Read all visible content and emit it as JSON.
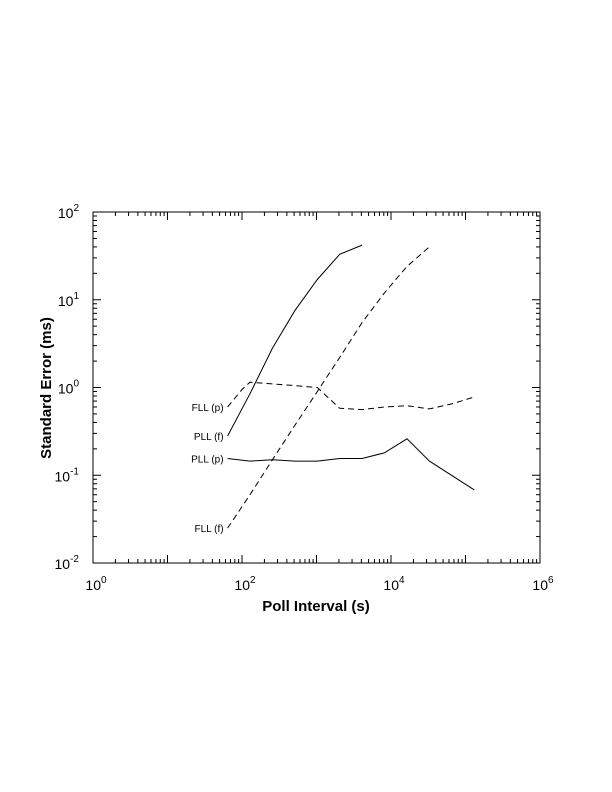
{
  "chart_data": {
    "type": "line",
    "title": "",
    "xlabel": "Poll Interval (s)",
    "ylabel": "Standard Error (ms)",
    "x_scale": "log",
    "y_scale": "log",
    "xlim": [
      1,
      1000000
    ],
    "ylim": [
      0.01,
      100
    ],
    "grid": false,
    "legend": "none",
    "x_ticks": [
      {
        "value": 1,
        "base": "10",
        "exp": "0"
      },
      {
        "value": 100,
        "base": "10",
        "exp": "2"
      },
      {
        "value": 10000,
        "base": "10",
        "exp": "4"
      },
      {
        "value": 1000000,
        "base": "10",
        "exp": "6"
      }
    ],
    "y_ticks": [
      {
        "value": 0.01,
        "base": "10",
        "exp": "-2"
      },
      {
        "value": 0.1,
        "base": "10",
        "exp": "-1"
      },
      {
        "value": 1,
        "base": "10",
        "exp": "0"
      },
      {
        "value": 10,
        "base": "10",
        "exp": "1"
      },
      {
        "value": 100,
        "base": "10",
        "exp": "2"
      }
    ],
    "series": [
      {
        "name": "FLL (p)",
        "style": "dashed",
        "x": [
          64,
          100,
          128,
          256,
          512,
          1024,
          2048,
          4096,
          8192,
          16384,
          32768,
          65536,
          131072
        ],
        "y": [
          0.6,
          0.95,
          1.15,
          1.1,
          1.05,
          1.0,
          0.58,
          0.56,
          0.6,
          0.62,
          0.57,
          0.65,
          0.78
        ]
      },
      {
        "name": "PLL (f)",
        "style": "solid",
        "x": [
          64,
          128,
          256,
          512,
          1024,
          2048,
          4096
        ],
        "y": [
          0.28,
          0.85,
          2.8,
          7.5,
          17,
          33,
          42
        ]
      },
      {
        "name": "PLL (p)",
        "style": "solid",
        "x": [
          64,
          128,
          256,
          512,
          1024,
          2048,
          4096,
          8192,
          16384,
          32768,
          131072
        ],
        "y": [
          0.155,
          0.145,
          0.15,
          0.145,
          0.145,
          0.155,
          0.155,
          0.18,
          0.26,
          0.145,
          0.068
        ]
      },
      {
        "name": "FLL (f)",
        "style": "dashed",
        "x": [
          64,
          128,
          256,
          512,
          1024,
          2048,
          4096,
          8192,
          16384,
          32768
        ],
        "y": [
          0.025,
          0.06,
          0.15,
          0.37,
          0.9,
          2.2,
          5.5,
          12,
          24,
          40
        ]
      }
    ]
  }
}
